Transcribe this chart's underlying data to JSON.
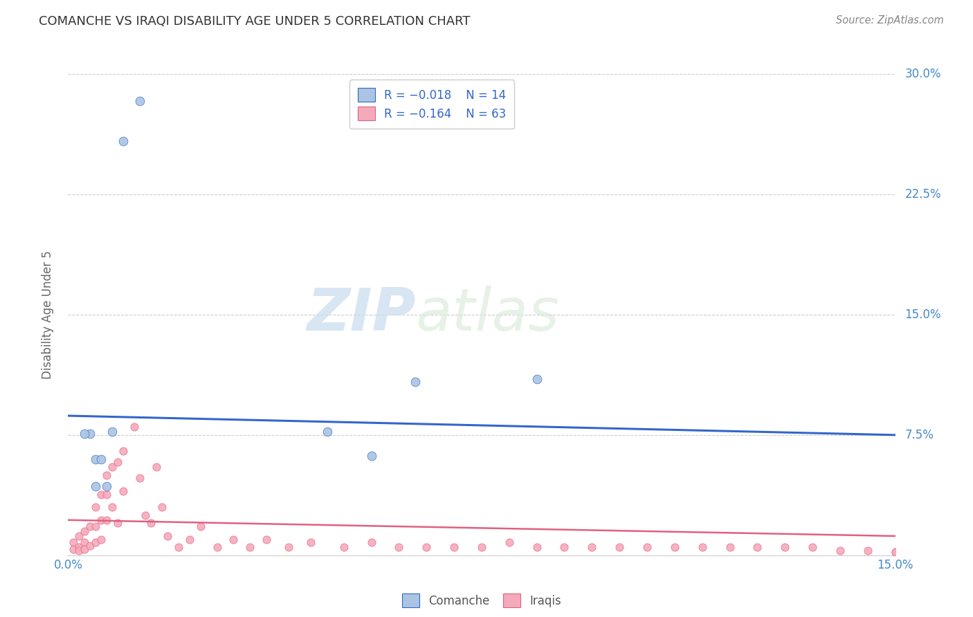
{
  "title": "COMANCHE VS IRAQI DISABILITY AGE UNDER 5 CORRELATION CHART",
  "source": "Source: ZipAtlas.com",
  "ylabel": "Disability Age Under 5",
  "xlim": [
    0.0,
    0.15
  ],
  "ylim": [
    0.0,
    0.3
  ],
  "comanche_color": "#aac4e2",
  "iraqi_color": "#f5aabb",
  "comanche_line_color": "#3366cc",
  "iraqi_line_color": "#e06080",
  "watermark_zip": "ZIP",
  "watermark_atlas": "atlas",
  "comanche_x": [
    0.013,
    0.01,
    0.004,
    0.003,
    0.005,
    0.006,
    0.005,
    0.007,
    0.008,
    0.047,
    0.055,
    0.063,
    0.085
  ],
  "comanche_y": [
    0.283,
    0.258,
    0.076,
    0.076,
    0.06,
    0.06,
    0.043,
    0.043,
    0.077,
    0.077,
    0.062,
    0.108,
    0.11
  ],
  "iraqi_x": [
    0.001,
    0.001,
    0.002,
    0.002,
    0.002,
    0.003,
    0.003,
    0.003,
    0.004,
    0.004,
    0.005,
    0.005,
    0.005,
    0.006,
    0.006,
    0.006,
    0.007,
    0.007,
    0.007,
    0.008,
    0.008,
    0.009,
    0.009,
    0.01,
    0.01,
    0.012,
    0.013,
    0.014,
    0.015,
    0.016,
    0.017,
    0.018,
    0.02,
    0.022,
    0.024,
    0.027,
    0.03,
    0.033,
    0.036,
    0.04,
    0.044,
    0.05,
    0.055,
    0.06,
    0.065,
    0.07,
    0.075,
    0.08,
    0.085,
    0.09,
    0.095,
    0.1,
    0.105,
    0.11,
    0.115,
    0.12,
    0.125,
    0.13,
    0.135,
    0.14,
    0.145,
    0.15,
    0.15
  ],
  "iraqi_y": [
    0.008,
    0.004,
    0.012,
    0.005,
    0.003,
    0.015,
    0.008,
    0.004,
    0.018,
    0.006,
    0.03,
    0.018,
    0.008,
    0.038,
    0.022,
    0.01,
    0.05,
    0.038,
    0.022,
    0.055,
    0.03,
    0.058,
    0.02,
    0.065,
    0.04,
    0.08,
    0.048,
    0.025,
    0.02,
    0.055,
    0.03,
    0.012,
    0.005,
    0.01,
    0.018,
    0.005,
    0.01,
    0.005,
    0.01,
    0.005,
    0.008,
    0.005,
    0.008,
    0.005,
    0.005,
    0.005,
    0.005,
    0.008,
    0.005,
    0.005,
    0.005,
    0.005,
    0.005,
    0.005,
    0.005,
    0.005,
    0.005,
    0.005,
    0.005,
    0.003,
    0.003,
    0.002,
    0.002
  ],
  "comanche_line_x0": 0.0,
  "comanche_line_y0": 0.087,
  "comanche_line_x1": 0.15,
  "comanche_line_y1": 0.075,
  "iraqi_line_x0": 0.0,
  "iraqi_line_y0": 0.022,
  "iraqi_line_x1": 0.15,
  "iraqi_line_y1": 0.012
}
